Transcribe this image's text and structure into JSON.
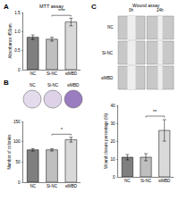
{
  "chart_data": [
    {
      "panel": "A",
      "type": "bar",
      "title": "MTT assay",
      "categories": [
        "NC",
        "Si-NC",
        "siMBD"
      ],
      "values": [
        0.85,
        0.8,
        1.25
      ],
      "errors": [
        0.06,
        0.05,
        0.1
      ],
      "colors": [
        "#7f7f7f",
        "#bfbfbf",
        "#d9d9d9"
      ],
      "y_label": "Absorbance 450nm",
      "ylim": [
        0,
        1.5
      ],
      "yticks": [
        0,
        0.5,
        {
          "value": 1,
          "label": "1.0"
        },
        1.5
      ],
      "significance": [
        {
          "from": 1,
          "to": 2,
          "label": "****"
        }
      ]
    },
    {
      "panel": "B",
      "type": "bar",
      "categories": [
        "NC",
        "Si-NC",
        "siMBD"
      ],
      "values": [
        80,
        80,
        105
      ],
      "errors": [
        3,
        3,
        6
      ],
      "colors": [
        "#7f7f7f",
        "#bfbfbf",
        "#d9d9d9"
      ],
      "y_label": "Number of colonies",
      "ylim": [
        0,
        150
      ],
      "yticks": [
        0,
        50,
        100,
        150
      ],
      "significance": [
        {
          "from": 1,
          "to": 2,
          "label": "*"
        }
      ]
    },
    {
      "panel": "C",
      "type": "bar",
      "categories": [
        "NC",
        "Si-NC",
        "siMBD"
      ],
      "values": [
        11,
        11,
        26
      ],
      "errors": [
        1.5,
        2,
        6
      ],
      "colors": [
        "#7f7f7f",
        "#bfbfbf",
        "#d9d9d9"
      ],
      "y_label": "Wound closure percentage (%)",
      "ylim": [
        0,
        40
      ],
      "yticks": [
        0,
        10,
        20,
        30,
        40
      ],
      "significance": [
        {
          "from": 1,
          "to": 2,
          "label": "**"
        }
      ]
    }
  ],
  "images": {
    "B": {
      "labels": [
        "NC",
        "Si-NC",
        "siMBD"
      ]
    },
    "C": {
      "title": "Wound assay",
      "columns": [
        "0h",
        "24h"
      ],
      "rows": [
        "NC",
        "Si-NC",
        "siMBD"
      ]
    }
  }
}
